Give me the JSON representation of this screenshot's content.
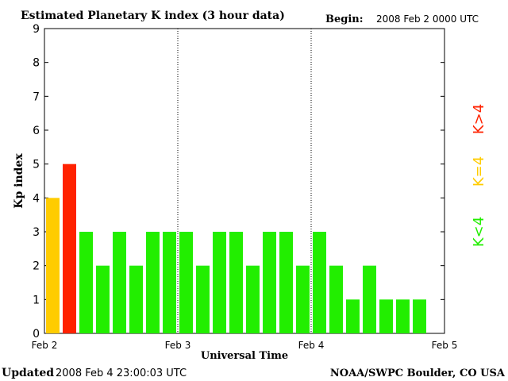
{
  "header": {
    "title": "Estimated Planetary K index (3 hour data)",
    "begin_label": "Begin:",
    "begin_value": "2008 Feb 2 0000 UTC"
  },
  "footer": {
    "updated_label": "Updated",
    "updated_value": "2008 Feb  4 23:00:03 UTC",
    "source": "NOAA/SWPC Boulder, CO USA"
  },
  "legend": {
    "below": "K<4",
    "equal": "K=4",
    "above": "K>4"
  },
  "colors": {
    "below": "#22ee00",
    "equal": "#ffcc00",
    "above": "#ff2200"
  },
  "chart_data": {
    "type": "bar",
    "title": "Estimated Planetary K index (3 hour data)",
    "xlabel": "Universal Time",
    "ylabel": "Kp index",
    "ylim": [
      0,
      9
    ],
    "yticks": [
      "0",
      "1",
      "2",
      "3",
      "4",
      "5",
      "6",
      "7",
      "8",
      "9"
    ],
    "xtick_labels": [
      "Feb 2",
      "Feb 3",
      "Feb 4",
      "Feb 5"
    ],
    "interval_hours": 3,
    "values": [
      4,
      5,
      3,
      2,
      3,
      2,
      3,
      3,
      3,
      2,
      3,
      3,
      2,
      3,
      3,
      2,
      3,
      2,
      1,
      2,
      1,
      1,
      1
    ],
    "day_dividers": "dotted"
  }
}
